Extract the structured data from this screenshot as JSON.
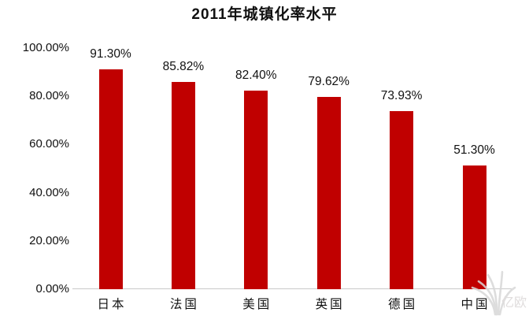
{
  "chart": {
    "title": "2011年城镇化率水平",
    "watermark_text": "亿欧"
  },
  "chart_data": {
    "type": "bar",
    "title": "2011年城镇化率水平",
    "categories": [
      "日本",
      "法国",
      "美国",
      "英国",
      "德国",
      "中国"
    ],
    "values": [
      91.3,
      85.82,
      82.4,
      79.62,
      73.93,
      51.3
    ],
    "value_labels": [
      "91.30%",
      "85.82%",
      "82.40%",
      "79.62%",
      "73.93%",
      "51.30%"
    ],
    "xlabel": "",
    "ylabel": "",
    "ylim": [
      0,
      100
    ],
    "yticks_top_to_bottom": [
      "100.00%",
      "80.00%",
      "60.00%",
      "40.00%",
      "20.00%",
      "0.00%"
    ],
    "bar_color": "#C00000",
    "grid": false,
    "legend": false,
    "background": "#FFFFFF",
    "axis_line_color": "#C9C9C9"
  }
}
